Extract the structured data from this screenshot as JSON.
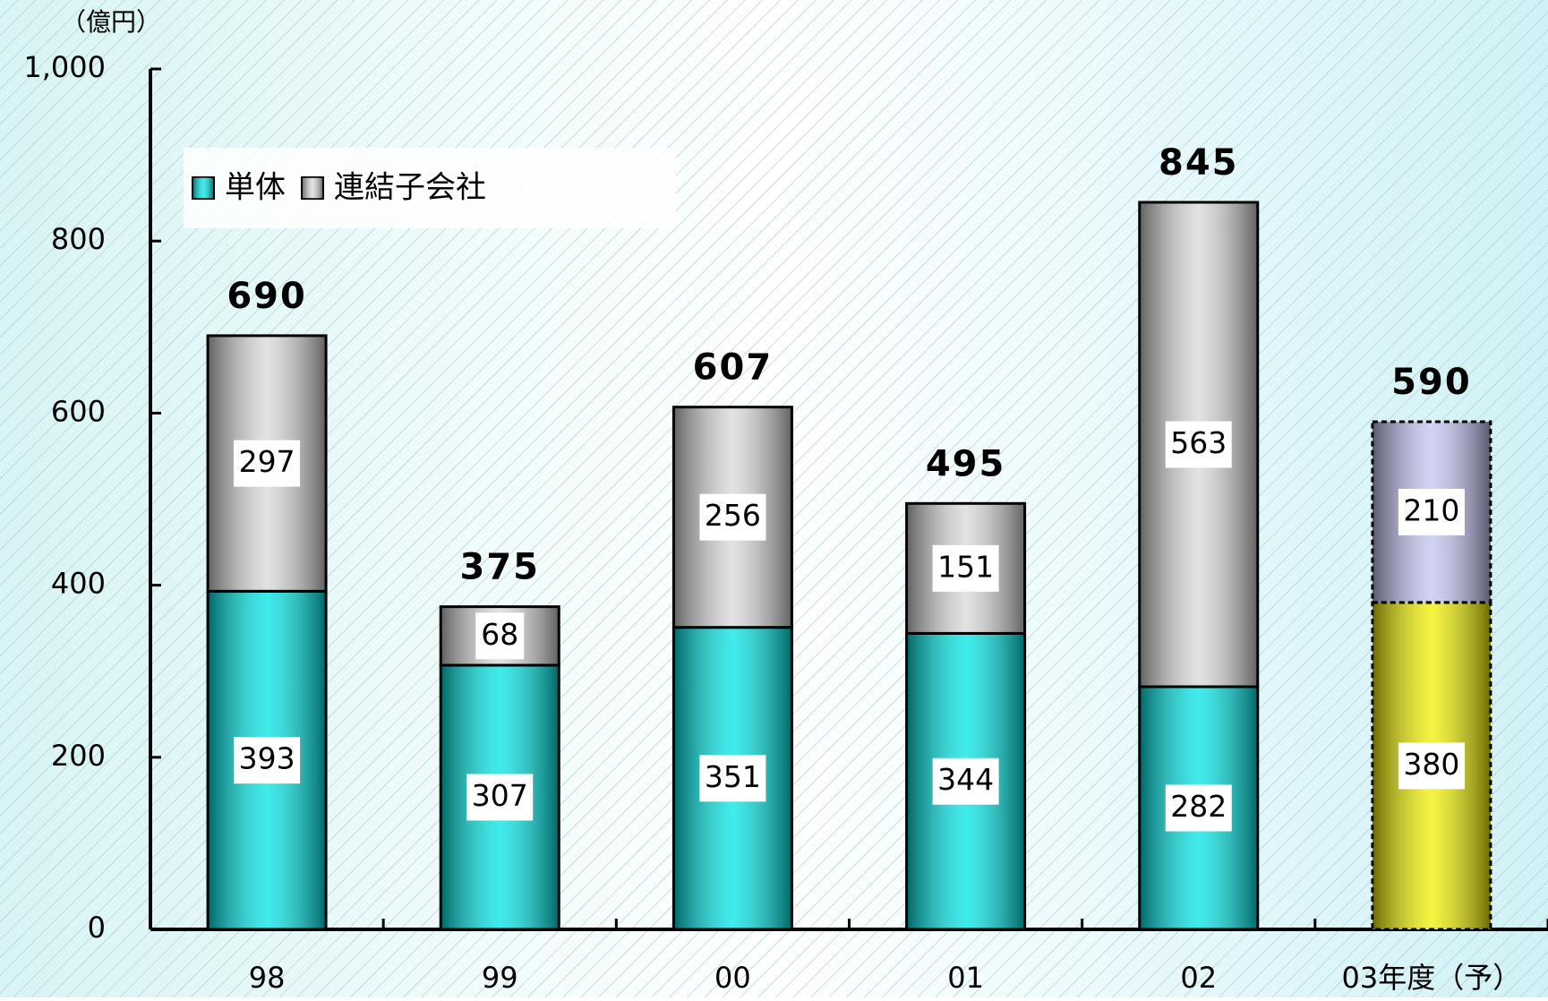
{
  "chart_data": {
    "type": "stacked_bar",
    "y_axis_label": "（億円）",
    "categories": [
      "98",
      "99",
      "00",
      "01",
      "02",
      "03年度（予）"
    ],
    "series": [
      {
        "name": "単体",
        "color": "#00e5e5",
        "colors": [
          "#00e5e5",
          "#00e5e5",
          "#00e5e5",
          "#00e5e5",
          "#00e5e5",
          "#f0f000"
        ],
        "values": [
          393,
          307,
          351,
          344,
          282,
          380
        ]
      },
      {
        "name": "連結子会社",
        "color": "#d8d8d8",
        "colors": [
          "#d8d8d8",
          "#d8d8d8",
          "#d8d8d8",
          "#d8d8d8",
          "#d8d8d8",
          "#c4c4f4"
        ],
        "values": [
          297,
          68,
          256,
          151,
          563,
          210
        ]
      }
    ],
    "totals": [
      690,
      375,
      607,
      495,
      845,
      590
    ],
    "ylim": [
      0,
      1000
    ],
    "yticks": [
      0,
      200,
      400,
      600,
      800,
      {
        "value": 1000,
        "label": "1,000"
      }
    ]
  }
}
